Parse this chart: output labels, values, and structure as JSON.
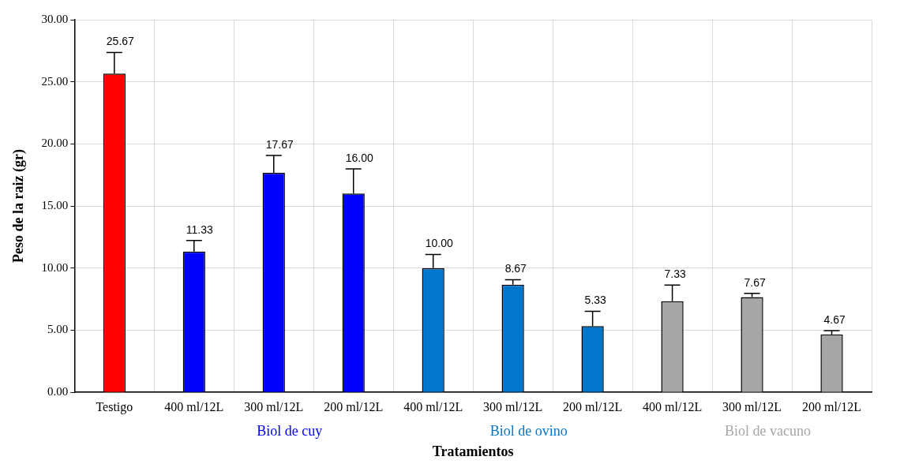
{
  "chart_data": {
    "type": "bar",
    "xlabel": "Tratamientos",
    "ylabel": "Peso de la raiz (gr)",
    "categories": [
      "Testigo",
      "400 ml/12L",
      "300 ml/12L",
      "200 ml/12L",
      "400 ml/12L",
      "300 ml/12L",
      "200 ml/12L",
      "400 ml/12L",
      "300 ml/12L",
      "200 ml/12L"
    ],
    "values": [
      25.67,
      11.33,
      17.67,
      16.0,
      10.0,
      8.67,
      5.33,
      7.33,
      7.67,
      4.67
    ],
    "errors": [
      1.7,
      0.9,
      1.4,
      2.0,
      1.1,
      0.4,
      1.2,
      1.3,
      0.3,
      0.3
    ],
    "colors": [
      "#ff0000",
      "#0000ff",
      "#0000ff",
      "#0000ff",
      "#0077cc",
      "#0077cc",
      "#0077cc",
      "#a6a6a6",
      "#a6a6a6",
      "#a6a6a6"
    ],
    "value_labels": [
      "25.67",
      "11.33",
      "17.67",
      "16.00",
      "10.00",
      "8.67",
      "5.33",
      "7.33",
      "7.67",
      "4.67"
    ],
    "annotations": [
      "Biol de cuy",
      "Biol de ovino",
      "Biol de vacuno"
    ],
    "ylim": [
      0,
      30
    ],
    "yticks": [
      {
        "value": 0,
        "label": "0.00"
      },
      {
        "value": 5,
        "label": "5.00"
      },
      {
        "value": 10,
        "label": "10.00"
      },
      {
        "value": 15,
        "label": "15.00"
      },
      {
        "value": 20,
        "label": "20.00"
      },
      {
        "value": 25,
        "label": "25.00"
      },
      {
        "value": 30,
        "label": "30.00"
      }
    ],
    "grid": true,
    "legend": false
  }
}
